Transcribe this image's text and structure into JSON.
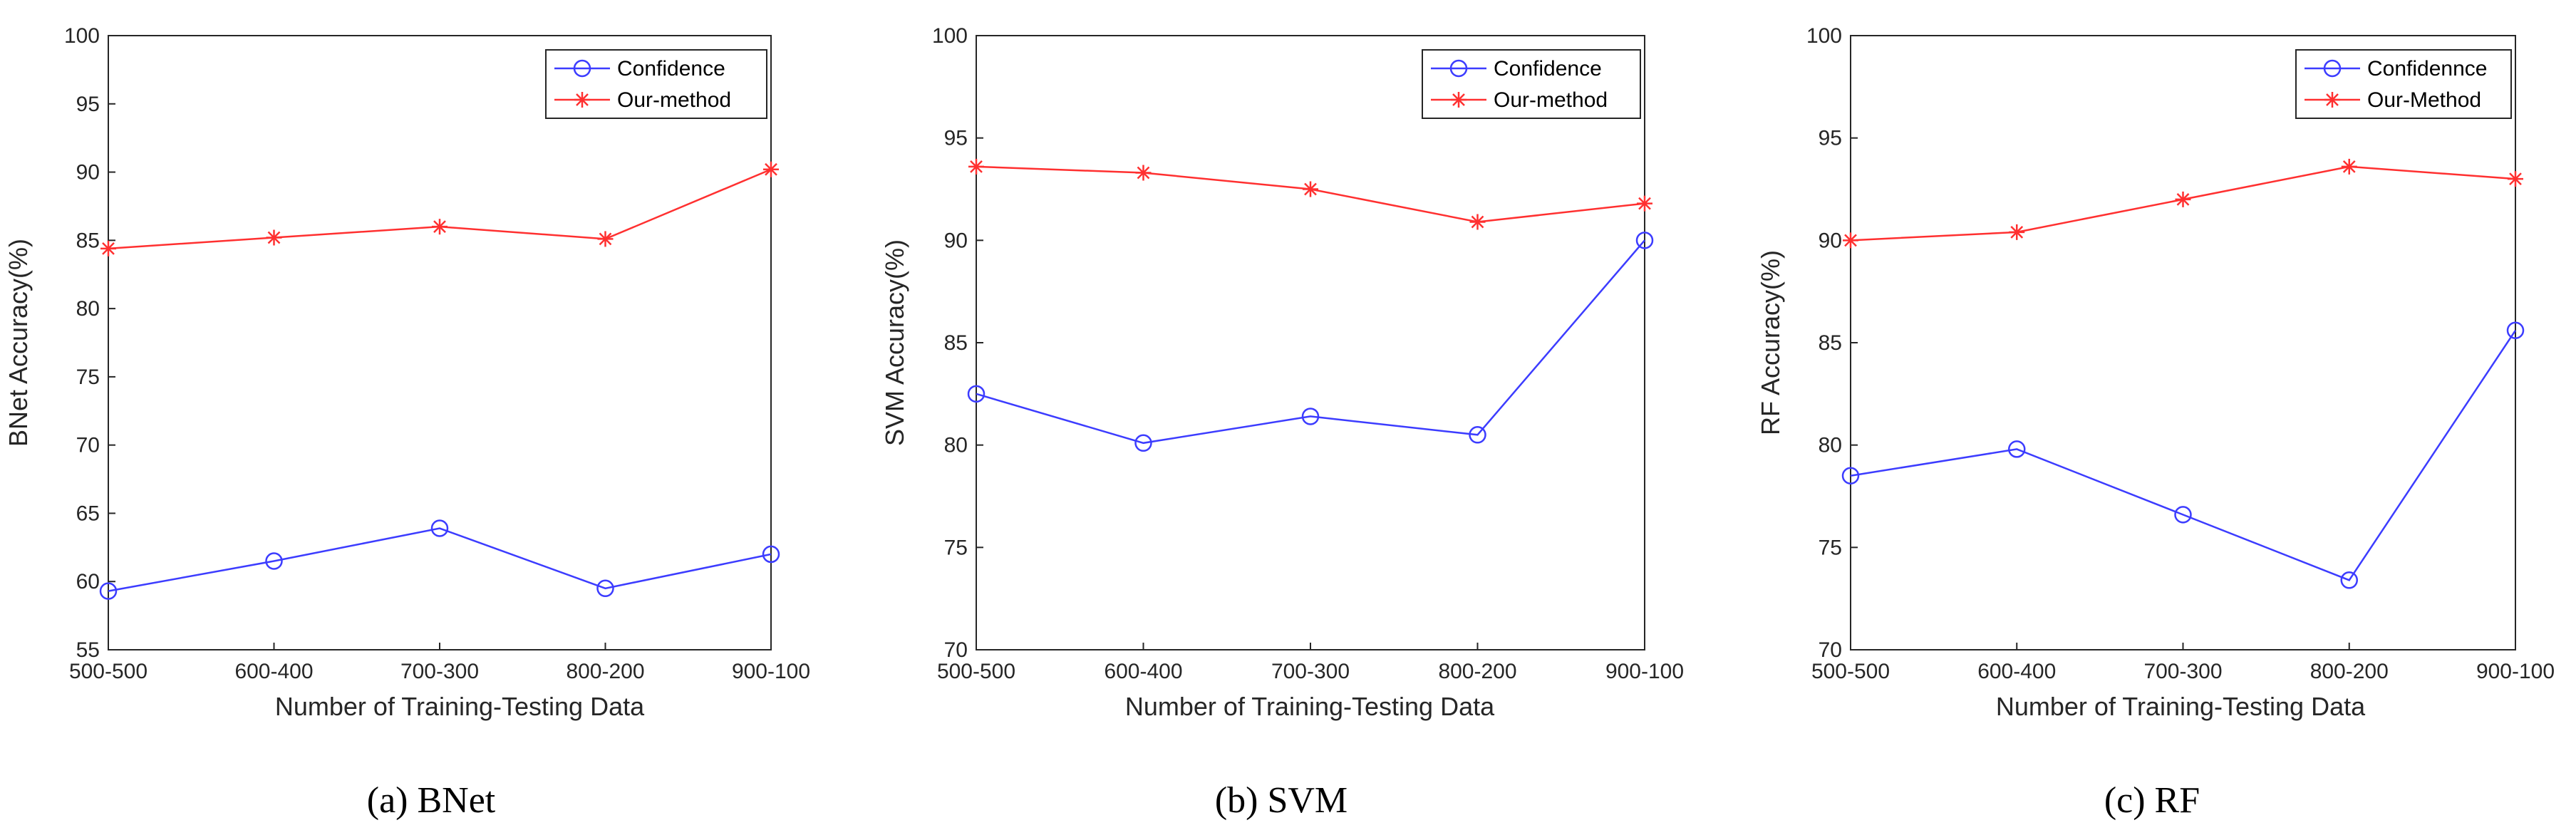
{
  "colors": {
    "confidence": "#3c3cff",
    "ours": "#ff3030",
    "axis": "#262626",
    "legend_border": "#262626"
  },
  "chart_data": [
    {
      "id": "bnet",
      "type": "line",
      "caption": "(a)  BNet",
      "xlabel": "Number of Training-Testing Data",
      "ylabel": "BNet Accuracy(%)",
      "categories": [
        "500-500",
        "600-400",
        "700-300",
        "800-200",
        "900-100"
      ],
      "ylim": [
        55,
        100
      ],
      "yticks": [
        55,
        60,
        65,
        70,
        75,
        80,
        85,
        90,
        95,
        100
      ],
      "legend_position": "top-right",
      "series": [
        {
          "name": "Confidence",
          "marker": "circle",
          "color_key": "confidence",
          "values": [
            59.3,
            61.5,
            63.9,
            59.5,
            62.0
          ]
        },
        {
          "name": "Our-method",
          "marker": "asterisk",
          "color_key": "ours",
          "values": [
            84.4,
            85.2,
            86.0,
            85.1,
            90.2
          ]
        }
      ]
    },
    {
      "id": "svm",
      "type": "line",
      "caption": "(b)  SVM",
      "xlabel": "Number of Training-Testing Data",
      "ylabel": "SVM Accuracy(%)",
      "categories": [
        "500-500",
        "600-400",
        "700-300",
        "800-200",
        "900-100"
      ],
      "ylim": [
        70,
        100
      ],
      "yticks": [
        70,
        75,
        80,
        85,
        90,
        95,
        100
      ],
      "legend_position": "top-right",
      "series": [
        {
          "name": "Confidence",
          "marker": "circle",
          "color_key": "confidence",
          "values": [
            82.5,
            80.1,
            81.4,
            80.5,
            90.0
          ]
        },
        {
          "name": "Our-method",
          "marker": "asterisk",
          "color_key": "ours",
          "values": [
            93.6,
            93.3,
            92.5,
            90.9,
            91.8
          ]
        }
      ]
    },
    {
      "id": "rf",
      "type": "line",
      "caption": "(c)  RF",
      "xlabel": "Number of Training-Testing Data",
      "ylabel": "RF Accuracy(%)",
      "categories": [
        "500-500",
        "600-400",
        "700-300",
        "800-200",
        "900-100"
      ],
      "ylim": [
        70,
        100
      ],
      "yticks": [
        70,
        75,
        80,
        85,
        90,
        95,
        100
      ],
      "legend_position": "top-right",
      "series": [
        {
          "name": "Confidennce",
          "marker": "circle",
          "color_key": "confidence",
          "values": [
            78.5,
            79.8,
            76.6,
            73.4,
            85.6
          ]
        },
        {
          "name": "Our-Method",
          "marker": "asterisk",
          "color_key": "ours",
          "values": [
            90.0,
            90.4,
            92.0,
            93.6,
            93.0
          ]
        }
      ]
    }
  ]
}
